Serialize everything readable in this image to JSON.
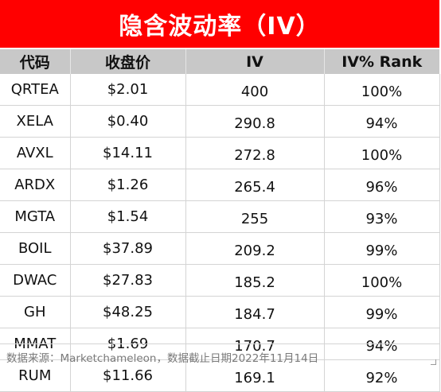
{
  "title": "隐含波动率（IV）",
  "headers": [
    "代码",
    "收盘价",
    "IV",
    "IV% Rank"
  ],
  "rows": [
    {
      "ticker": "QRTEA",
      "close": "$2.01",
      "iv": "400",
      "rank": "100%"
    },
    {
      "ticker": "XELA",
      "close": "$0.40",
      "iv": "290.8",
      "rank": "94%"
    },
    {
      "ticker": "AVXL",
      "close": "$14.11",
      "iv": "272.8",
      "rank": "100%"
    },
    {
      "ticker": "ARDX",
      "close": "$1.26",
      "iv": "265.4",
      "rank": "96%"
    },
    {
      "ticker": "MGTA",
      "close": "$1.54",
      "iv": "255",
      "rank": "93%"
    },
    {
      "ticker": "BOIL",
      "close": "$37.89",
      "iv": "209.2",
      "rank": "99%"
    },
    {
      "ticker": "DWAC",
      "close": "$27.83",
      "iv": "185.2",
      "rank": "100%"
    },
    {
      "ticker": "GH",
      "close": "$48.25",
      "iv": "184.7",
      "rank": "99%"
    },
    {
      "ticker": "MMAT",
      "close": "$1.69",
      "iv": "170.7",
      "rank": "94%"
    },
    {
      "ticker": "RUM",
      "close": "$11.66",
      "iv": "169.1",
      "rank": "92%"
    }
  ],
  "footnote": "数据来源：Marketchameleon，数据截止日期2022年11月14日",
  "colors": {
    "title_bg": "#ff0000",
    "header_bg": "#c8c8c8"
  }
}
